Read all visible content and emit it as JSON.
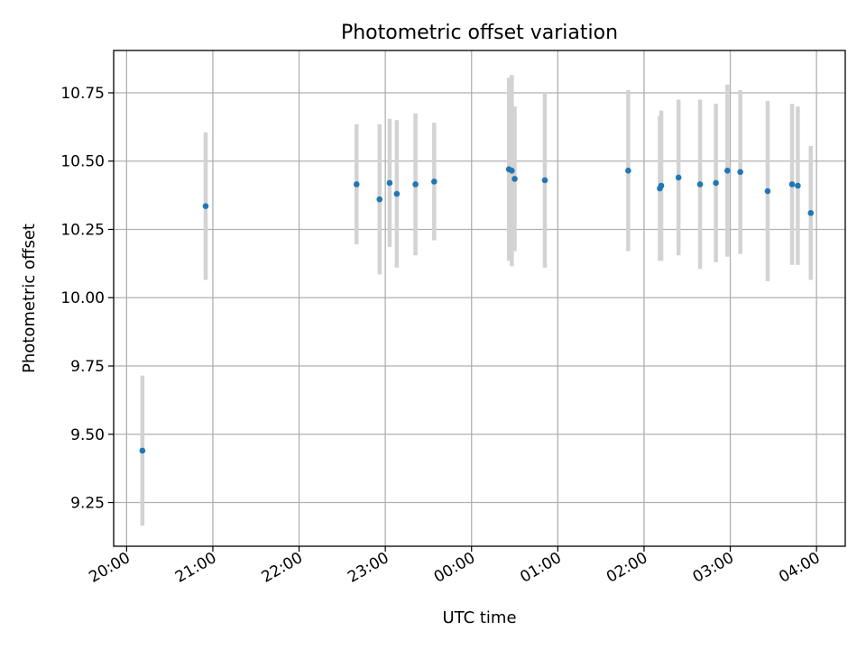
{
  "chart_data": {
    "type": "scatter",
    "title": "Photometric offset variation",
    "xlabel": "UTC time",
    "ylabel": "Photometric offset",
    "ylim": [
      9.09,
      10.905
    ],
    "xlim": [
      "19:51",
      "04:20"
    ],
    "y_ticks": [
      9.25,
      9.5,
      9.75,
      10.0,
      10.25,
      10.5,
      10.75
    ],
    "y_tick_labels": [
      "9.25",
      "9.50",
      "9.75",
      "10.00",
      "10.25",
      "10.50",
      "10.75"
    ],
    "x_ticks": [
      "20:00",
      "21:00",
      "22:00",
      "23:00",
      "00:00",
      "01:00",
      "02:00",
      "03:00",
      "04:00"
    ],
    "x_tick_labels": [
      "20:00",
      "21:00",
      "22:00",
      "23:00",
      "00:00",
      "01:00",
      "02:00",
      "03:00",
      "04:00"
    ],
    "grid": true,
    "marker_color": "#1f77b4",
    "errorbar_color": "#d3d3d3",
    "points": [
      {
        "x": "20:11",
        "y": 9.44,
        "yerr": 0.275
      },
      {
        "x": "20:55",
        "y": 10.335,
        "yerr": 0.27
      },
      {
        "x": "22:40",
        "y": 10.415,
        "yerr": 0.22
      },
      {
        "x": "22:56",
        "y": 10.36,
        "yerr": 0.275
      },
      {
        "x": "23:03",
        "y": 10.42,
        "yerr": 0.235
      },
      {
        "x": "23:08",
        "y": 10.38,
        "yerr": 0.27
      },
      {
        "x": "23:21",
        "y": 10.415,
        "yerr": 0.26
      },
      {
        "x": "23:34",
        "y": 10.425,
        "yerr": 0.215
      },
      {
        "x": "00:26",
        "y": 10.47,
        "yerr": 0.335
      },
      {
        "x": "00:28",
        "y": 10.465,
        "yerr": 0.35
      },
      {
        "x": "00:30",
        "y": 10.435,
        "yerr": 0.265
      },
      {
        "x": "00:51",
        "y": 10.43,
        "yerr": 0.32
      },
      {
        "x": "01:49",
        "y": 10.465,
        "yerr": 0.295
      },
      {
        "x": "02:11",
        "y": 10.4,
        "yerr": 0.265
      },
      {
        "x": "02:12",
        "y": 10.41,
        "yerr": 0.275
      },
      {
        "x": "02:24",
        "y": 10.44,
        "yerr": 0.285
      },
      {
        "x": "02:39",
        "y": 10.415,
        "yerr": 0.31
      },
      {
        "x": "02:50",
        "y": 10.42,
        "yerr": 0.29
      },
      {
        "x": "02:58",
        "y": 10.465,
        "yerr": 0.315
      },
      {
        "x": "03:07",
        "y": 10.46,
        "yerr": 0.3
      },
      {
        "x": "03:26",
        "y": 10.39,
        "yerr": 0.33
      },
      {
        "x": "03:43",
        "y": 10.415,
        "yerr": 0.295
      },
      {
        "x": "03:47",
        "y": 10.41,
        "yerr": 0.29
      },
      {
        "x": "03:56",
        "y": 10.31,
        "yerr": 0.245
      }
    ]
  }
}
